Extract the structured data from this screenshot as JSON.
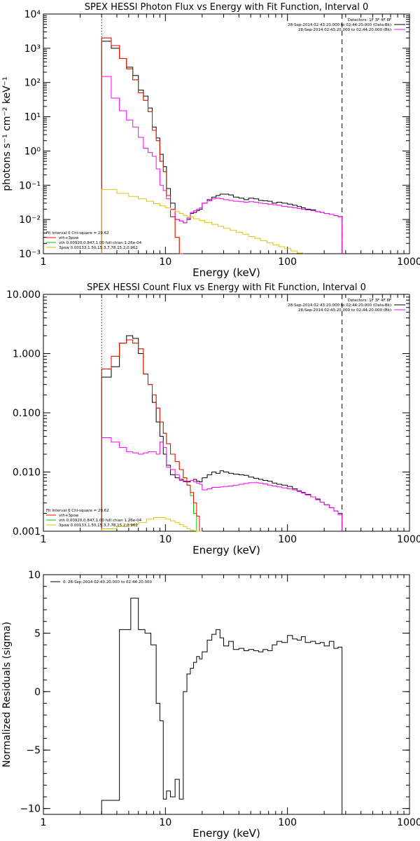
{
  "chart_data": [
    {
      "type": "line",
      "title": "SPEX HESSI Photon Flux vs Energy with Fit Function, Interval 0",
      "xlabel": "Energy (keV)",
      "ylabel": "photons s⁻¹ cm⁻² keV⁻¹",
      "xscale": "log",
      "yscale": "log",
      "xlim": [
        1,
        1000
      ],
      "ylim": [
        0.001,
        10000
      ],
      "xticks": [
        1,
        10,
        100,
        1000
      ],
      "xtick_labels": [
        "1",
        "10",
        "100",
        "1000"
      ],
      "yticks": [
        0.001,
        0.01,
        0.1,
        1,
        10,
        100,
        1000,
        10000
      ],
      "ytick_labels": [
        "10⁻³",
        "10⁻²",
        "10⁻¹",
        "10⁰",
        "10¹",
        "10²",
        "10³",
        "10⁴"
      ],
      "grid": false,
      "vlines": [
        {
          "x": 3,
          "style": "dotted"
        },
        {
          "x": 280,
          "style": "dashed"
        }
      ],
      "legend_top": {
        "placement": "top-right",
        "lines": [
          "Detectors: 1F 3F 4F 8F",
          "28-Sep-2014 02:43:20.000 to 02:44:20.000 (Data-Bk)",
          "28-Sep-2014 02:43:20.000 to 02:44:20.000 (Bk)"
        ],
        "colors": [
          "",
          "#000000",
          "#ff00ff"
        ]
      },
      "legend_bottom": {
        "placement": "bottom-left",
        "lines": [
          "Fit Interval 0   Chi-square = 29.62",
          "vth+3pow",
          "vth 0.00920,0.847,1.00  full chian 1.26e-04",
          "3pow 0.00133,1.50,15.3,7.78,15.2,0.962"
        ],
        "colors": [
          "",
          "#ff0000",
          "#00cc00",
          "#e6c200"
        ]
      },
      "series": [
        {
          "color": "#000000",
          "edges": [
            3.0,
            3.6,
            4.2,
            4.8,
            5.4,
            6.0,
            6.6,
            7.2,
            7.8,
            8.4,
            9.0,
            9.6,
            10.2,
            11.0,
            12.0,
            13.0,
            14.0,
            15.0,
            16.0,
            17.0,
            18.0,
            19.0,
            20.0,
            22.0,
            24.0,
            26.0,
            28.0,
            30.0,
            33.0,
            36.0,
            40.0,
            44.0,
            48.0,
            53.0,
            58.0,
            63.0,
            69.0,
            75.0,
            82.0,
            90.0,
            100.0,
            110.0,
            120.0,
            130.0,
            140.0,
            155.0,
            170.0,
            185.0,
            200.0,
            220.0,
            240.0,
            260.0,
            280.0
          ],
          "values": [
            1600,
            1000,
            500,
            280,
            160,
            60,
            40,
            18,
            5,
            2.4,
            0.8,
            0.35,
            0.08,
            0.03,
            0.01,
            0.009,
            0.008,
            0.01,
            0.015,
            0.016,
            0.018,
            0.02,
            0.03,
            0.038,
            0.045,
            0.05,
            0.055,
            0.055,
            0.052,
            0.045,
            0.042,
            0.038,
            0.042,
            0.04,
            0.036,
            0.035,
            0.034,
            0.03,
            0.032,
            0.03,
            0.028,
            0.026,
            0.024,
            0.022,
            0.02,
            0.019,
            0.017,
            0.016,
            0.015,
            0.014,
            0.013,
            0.012
          ]
        },
        {
          "color": "#ff00ff",
          "edges": [
            3.0,
            3.6,
            4.2,
            4.8,
            5.4,
            6.0,
            6.6,
            7.2,
            7.8,
            8.4,
            9.0,
            9.6,
            10.2,
            11.0,
            12.0,
            13.0,
            14.0,
            15.0,
            16.0,
            17.0,
            18.0,
            19.0,
            20.0,
            22.0,
            24.0,
            26.0,
            28.0,
            30.0,
            33.0,
            36.0,
            40.0,
            44.0,
            48.0,
            53.0,
            58.0,
            63.0,
            69.0,
            75.0,
            82.0,
            90.0,
            100.0,
            110.0,
            120.0,
            130.0,
            140.0,
            155.0,
            170.0,
            185.0,
            200.0,
            220.0,
            240.0,
            260.0,
            280.0
          ],
          "values": [
            150,
            35,
            15,
            8,
            5,
            2.5,
            1.2,
            0.9,
            0.7,
            0.3,
            0.1,
            0.07,
            0.04,
            0.02,
            0.01,
            0.009,
            0.008,
            0.011,
            0.016,
            0.018,
            0.02,
            0.022,
            0.03,
            0.035,
            0.04,
            0.042,
            0.04,
            0.038,
            0.036,
            0.034,
            0.033,
            0.032,
            0.033,
            0.032,
            0.03,
            0.029,
            0.028,
            0.027,
            0.026,
            0.024,
            0.023,
            0.022,
            0.021,
            0.02,
            0.019,
            0.018,
            0.017,
            0.016,
            0.015,
            0.014,
            0.013,
            0.012
          ]
        },
        {
          "color": "#00cc00",
          "edges": [
            3.0,
            3.6,
            4.2,
            4.8,
            5.4,
            6.0,
            6.6,
            7.2,
            7.8,
            8.4,
            9.0,
            9.6,
            10.2,
            11.0,
            12.0,
            13.0,
            14.0
          ],
          "values": [
            2000,
            1200,
            500,
            250,
            120,
            50,
            30,
            14,
            4,
            2,
            0.5,
            0.25,
            0.05,
            0.012,
            0.003,
            0.001
          ]
        },
        {
          "color": "#ff0000",
          "edges": [
            3.0,
            3.6,
            4.2,
            4.8,
            5.4,
            6.0,
            6.6,
            7.2,
            7.8,
            8.4,
            9.0,
            9.6,
            10.2,
            11.0,
            12.0,
            13.0,
            14.0
          ],
          "values": [
            2000,
            1200,
            500,
            250,
            120,
            50,
            30,
            14,
            4,
            2,
            0.5,
            0.25,
            0.05,
            0.012,
            0.003,
            0.001
          ]
        },
        {
          "color": "#e6c200",
          "edges": [
            3.0,
            4.0,
            5.0,
            6.0,
            7.0,
            8.0,
            9.0,
            10.0,
            11.0,
            12.0,
            13.0,
            14.0,
            15.0,
            17.0,
            19.0,
            21.0,
            24.0,
            27.0,
            30.0,
            34.0,
            38.0,
            43.0,
            48.0,
            54.0,
            60.0,
            68.0,
            76.0,
            85.0,
            95.0,
            107.0,
            120.0,
            135.0
          ],
          "values": [
            0.075,
            0.058,
            0.047,
            0.04,
            0.034,
            0.029,
            0.025,
            0.022,
            0.019,
            0.017,
            0.015,
            0.0132,
            0.0118,
            0.0105,
            0.0093,
            0.0082,
            0.0072,
            0.0063,
            0.0055,
            0.0048,
            0.0042,
            0.0037,
            0.0032,
            0.0028,
            0.0024,
            0.0021,
            0.0018,
            0.0016,
            0.0014,
            0.0012,
            0.00105
          ]
        }
      ]
    },
    {
      "type": "line",
      "title": "SPEX HESSI Count Flux vs Energy with Fit Function, Interval 0",
      "xlabel": "Energy (keV)",
      "ylabel": "",
      "xscale": "log",
      "yscale": "log",
      "xlim": [
        1,
        1000
      ],
      "ylim": [
        0.001,
        10
      ],
      "xticks": [
        1,
        10,
        100,
        1000
      ],
      "xtick_labels": [
        "1",
        "10",
        "100",
        "1000"
      ],
      "yticks": [
        0.001,
        0.01,
        0.1,
        1,
        10
      ],
      "ytick_labels": [
        "0.001",
        "0.010",
        "0.100",
        "1.000",
        "10.000"
      ],
      "grid": false,
      "vlines": [
        {
          "x": 3,
          "style": "dotted"
        },
        {
          "x": 280,
          "style": "dashed"
        }
      ],
      "legend_top": {
        "placement": "top-right",
        "lines": [
          "Detectors: 1F 3F 4F 8F",
          "28-Sep-2014 02:43:20.000 to 02:44:20.000 (Data-Bk)",
          "28-Sep-2014 02:43:20.000 to 02:44:20.000 (Bk)"
        ],
        "colors": [
          "",
          "#000000",
          "#ff00ff"
        ]
      },
      "legend_bottom": {
        "placement": "bottom-left",
        "lines": [
          "Fit Interval 0   Chi-square = 29.62",
          "vth+3pow",
          "vth 0.00920,0.847,1.00  full chian 1.26e-04",
          "3pow 0.00133,1.50,15.3,7.78,15.2,0.962"
        ],
        "colors": [
          "",
          "#ff0000",
          "#00cc00",
          "#e6c200"
        ]
      },
      "series": [
        {
          "color": "#000000",
          "edges": [
            3.0,
            3.6,
            4.2,
            4.8,
            5.4,
            6.0,
            6.6,
            7.2,
            7.8,
            8.4,
            9.0,
            9.6,
            10.2,
            11.0,
            12.0,
            13.0,
            14.0,
            15.0,
            16.0,
            17.0,
            18.0,
            19.0,
            20.0,
            22.0,
            24.0,
            26.0,
            28.0,
            30.0,
            33.0,
            36.0,
            40.0,
            44.0,
            48.0,
            53.0,
            58.0,
            63.0,
            69.0,
            75.0,
            82.0,
            90.0,
            100.0,
            110.0,
            120.0,
            130.0,
            140.0,
            155.0,
            170.0,
            185.0,
            200.0,
            220.0,
            240.0,
            260.0,
            280.0
          ],
          "values": [
            0.4,
            0.6,
            1.5,
            2.0,
            1.8,
            1.0,
            0.45,
            0.3,
            0.15,
            0.07,
            0.04,
            0.02,
            0.013,
            0.009,
            0.008,
            0.0075,
            0.007,
            0.0068,
            0.0072,
            0.0075,
            0.007,
            0.0068,
            0.008,
            0.009,
            0.01,
            0.0095,
            0.0105,
            0.01,
            0.0095,
            0.0092,
            0.009,
            0.0088,
            0.0082,
            0.0078,
            0.0075,
            0.0072,
            0.007,
            0.0065,
            0.0062,
            0.006,
            0.0057,
            0.0052,
            0.0048,
            0.0045,
            0.0042,
            0.0038,
            0.0035,
            0.0031,
            0.0028,
            0.0025,
            0.0022,
            0.002
          ]
        },
        {
          "color": "#ff00ff",
          "edges": [
            3.0,
            3.6,
            4.2,
            4.8,
            5.4,
            6.0,
            6.6,
            7.2,
            7.8,
            8.4,
            9.0,
            9.6,
            10.2,
            11.0,
            12.0,
            13.0,
            14.0,
            15.0,
            16.0,
            17.0,
            18.0,
            19.0,
            20.0,
            22.0,
            24.0,
            26.0,
            28.0,
            30.0,
            33.0,
            36.0,
            40.0,
            44.0,
            48.0,
            53.0,
            58.0,
            63.0,
            69.0,
            75.0,
            82.0,
            90.0,
            100.0,
            110.0,
            120.0,
            130.0,
            140.0,
            155.0,
            170.0,
            185.0,
            200.0,
            220.0,
            240.0,
            260.0,
            280.0
          ],
          "values": [
            0.038,
            0.032,
            0.026,
            0.022,
            0.021,
            0.02,
            0.021,
            0.022,
            0.022,
            0.02,
            0.032,
            0.026,
            0.012,
            0.011,
            0.009,
            0.0072,
            0.0068,
            0.007,
            0.0072,
            0.0068,
            0.0065,
            0.0062,
            0.005,
            0.0052,
            0.0055,
            0.0055,
            0.0056,
            0.0057,
            0.0058,
            0.006,
            0.0062,
            0.0064,
            0.0066,
            0.0066,
            0.0065,
            0.0063,
            0.006,
            0.0058,
            0.0056,
            0.0054,
            0.0052,
            0.005,
            0.0047,
            0.0044,
            0.0041,
            0.0038,
            0.0034,
            0.0031,
            0.0028,
            0.0025,
            0.0022,
            0.0019
          ]
        },
        {
          "color": "#00cc00",
          "edges": [
            3.0,
            3.6,
            4.2,
            4.8,
            5.4,
            6.0,
            6.6,
            7.2,
            7.8,
            8.4,
            9.0,
            9.6,
            10.2,
            11.0,
            12.0,
            13.0,
            14.0,
            15.0,
            16.0,
            17.0,
            18.0,
            19.0
          ],
          "values": [
            0.55,
            0.9,
            1.5,
            1.7,
            1.5,
            1.2,
            0.45,
            0.3,
            0.2,
            0.12,
            0.07,
            0.045,
            0.03,
            0.02,
            0.015,
            0.011,
            0.008,
            0.006,
            0.004,
            0.002,
            0.001
          ]
        },
        {
          "color": "#ff0000",
          "edges": [
            3.0,
            3.6,
            4.2,
            4.8,
            5.4,
            6.0,
            6.6,
            7.2,
            7.8,
            8.4,
            9.0,
            9.6,
            10.2,
            11.0,
            12.0,
            13.0,
            14.0,
            15.0,
            16.0,
            17.0,
            18.0,
            19.0,
            20.0
          ],
          "values": [
            0.55,
            0.9,
            1.5,
            1.7,
            1.5,
            1.2,
            0.45,
            0.3,
            0.2,
            0.12,
            0.07,
            0.045,
            0.03,
            0.02,
            0.015,
            0.011,
            0.008,
            0.006,
            0.0045,
            0.003,
            0.0018,
            0.001
          ]
        },
        {
          "color": "#e6c200",
          "edges": [
            3.0,
            4.0,
            5.0,
            6.0,
            7.0,
            8.0,
            9.0,
            10.0,
            11.0,
            12.0,
            13.0,
            14.0,
            15.0,
            16.0,
            17.0,
            18.0,
            19.0,
            20.0
          ],
          "values": [
            0.0011,
            0.0012,
            0.0013,
            0.0014,
            0.0016,
            0.0017,
            0.0017,
            0.0016,
            0.0015,
            0.0014,
            0.0013,
            0.0012,
            0.0011,
            0.00105,
            0.00102,
            0.001,
            0.001
          ]
        }
      ]
    },
    {
      "type": "line",
      "title": "",
      "xlabel": "Energy (keV)",
      "ylabel": "Normalized Residuals (sigma)",
      "xscale": "log",
      "yscale": "linear",
      "xlim": [
        1,
        1000
      ],
      "ylim": [
        -10.5,
        10
      ],
      "xticks": [
        1,
        10,
        100,
        1000
      ],
      "xtick_labels": [
        "1",
        "10",
        "100",
        "1000"
      ],
      "yticks": [
        -10,
        -5,
        0,
        5,
        10
      ],
      "ytick_labels": [
        "−10",
        "−5",
        "0",
        "5",
        "10"
      ],
      "grid": false,
      "vlines": [],
      "legend_top": {
        "placement": "top-left",
        "lines": [
          "0. 28-Sep-2014 02:43:20.000 to 02:44:20.000"
        ],
        "colors": [
          "#000000"
        ]
      },
      "series": [
        {
          "color": "#000000",
          "edges": [
            3.0,
            4.2,
            5.2,
            6.0,
            6.8,
            7.6,
            8.4,
            9.0,
            9.6,
            10.2,
            11.0,
            12.0,
            13.0,
            14.0,
            15.0,
            16.0,
            17.0,
            18.0,
            19.0,
            20.0,
            22.0,
            24.0,
            26.0,
            28.0,
            30.0,
            33.0,
            36.0,
            40.0,
            44.0,
            48.0,
            53.0,
            58.0,
            63.0,
            69.0,
            75.0,
            82.0,
            90.0,
            100.0,
            110.0,
            120.0,
            130.0,
            140.0,
            155.0,
            170.0,
            185.0,
            200.0,
            220.0,
            240.0,
            260.0,
            280.0
          ],
          "values": [
            -9.3,
            5.3,
            8.0,
            5.3,
            5.0,
            4.0,
            -1.0,
            -2.5,
            -9.2,
            -8.5,
            -9.0,
            -7.5,
            -9.2,
            0.0,
            1.5,
            2.0,
            2.5,
            3.0,
            2.8,
            3.4,
            4.4,
            4.9,
            5.3,
            4.6,
            3.9,
            4.3,
            3.6,
            3.7,
            3.5,
            3.6,
            3.5,
            3.4,
            3.6,
            3.5,
            4.0,
            4.3,
            4.2,
            4.8,
            4.5,
            4.4,
            4.7,
            4.2,
            4.3,
            4.1,
            4.2,
            3.9,
            4.3,
            3.7,
            3.8,
            -10.5
          ]
        }
      ]
    }
  ]
}
